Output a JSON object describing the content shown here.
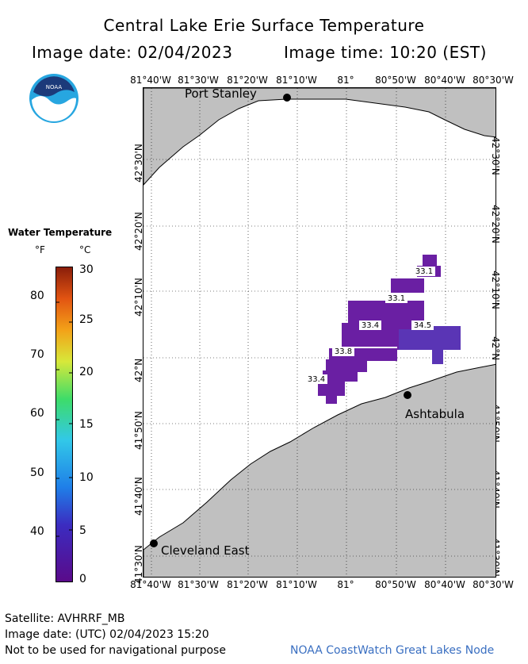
{
  "header": {
    "title": "Central Lake Erie Surface Temperature",
    "image_date": "Image date: 02/04/2023",
    "image_time": "Image time: 10:20 (EST)"
  },
  "logo": {
    "text": "NOAA",
    "icon": "noaa-logo"
  },
  "axes": {
    "lon_labels": [
      "81°40'W",
      "81°30'W",
      "81°20'W",
      "81°10'W",
      "81°",
      "80°50'W",
      "80°40'W",
      "80°30'W"
    ],
    "lat_labels": [
      "42°30'N",
      "42°20'N",
      "42°10'N",
      "42°N",
      "41°50'N",
      "41°40'N",
      "41°30'N"
    ]
  },
  "places": {
    "port_stanley": "Port Stanley",
    "ashtabula": "Ashtabula",
    "cleveland_east": "Cleveland East"
  },
  "temperature_labels": [
    "33.1",
    "33.1",
    "33.4",
    "34.5",
    "33.8",
    "33.4"
  ],
  "legend": {
    "title": "Water Temperature",
    "unit_f": "°F",
    "unit_c": "°C",
    "f_ticks": [
      "80",
      "70",
      "60",
      "50",
      "40"
    ],
    "c_ticks": [
      "30",
      "25",
      "20",
      "15",
      "10",
      "5",
      "0"
    ]
  },
  "footer": {
    "satellite": "Satellite: AVHRRF_MB",
    "utc_date": "Image date: (UTC) 02/04/2023  15:20",
    "disclaimer": "Not to be used for navigational purpose",
    "credit": "NOAA CoastWatch Great Lakes Node"
  },
  "colors": {
    "land": "#c0c0c0",
    "water": "#ffffff",
    "cold_cell": "#6a1fa3",
    "warm_cell": "#5a35b5"
  }
}
